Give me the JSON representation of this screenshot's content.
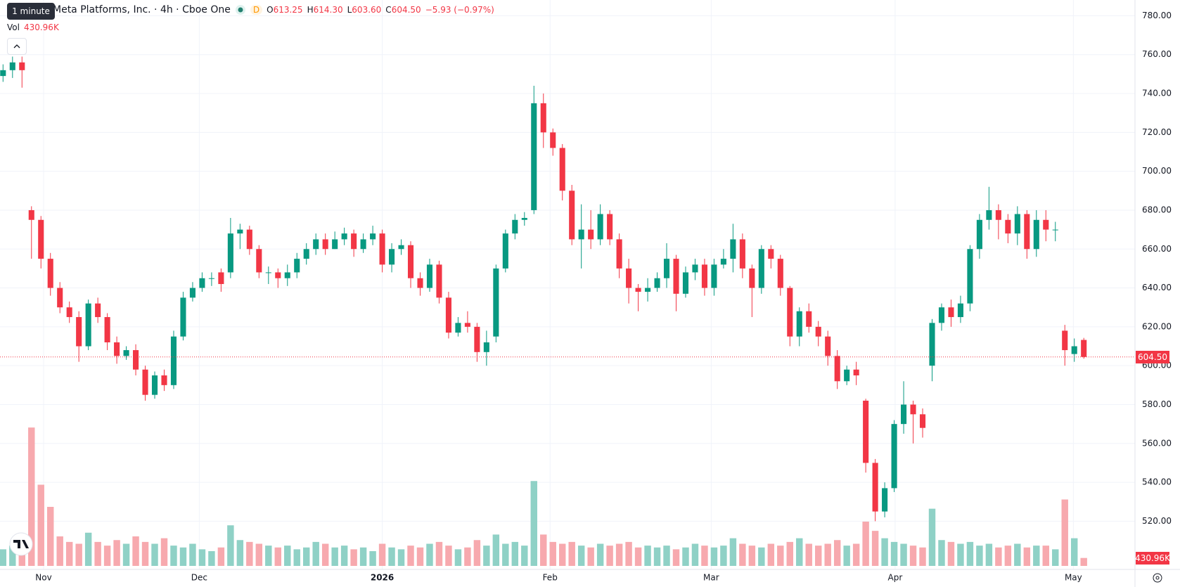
{
  "chart_data": {
    "type": "candlestick",
    "title": "Meta Platforms, Inc. · 4h · Cboe One",
    "tooltip": "1 minute",
    "interval_badge": "D",
    "ohlc_keys": [
      "O",
      "H",
      "L",
      "C"
    ],
    "ohlc_labels": [
      "613.25",
      "614.30",
      "603.60",
      "604.50"
    ],
    "change_label": "−5.93 (−0.97%)",
    "volume_title": "Vol",
    "volume_label": "430.96K",
    "up_color": "#089981",
    "down_color": "#f23645",
    "volume_up_color": "#8fd1c6",
    "volume_down_color": "#f7a9ae",
    "grid": true,
    "xlim": [
      -0.32,
      119.4
    ],
    "xticks": [
      {
        "value": 4.28,
        "label": "Nov"
      },
      {
        "value": 20.7,
        "label": "Dec"
      },
      {
        "value": 40,
        "label": "2026"
      },
      {
        "value": 57.7,
        "label": "Feb"
      },
      {
        "value": 74.7,
        "label": "Mar"
      },
      {
        "value": 94.1,
        "label": "Apr"
      },
      {
        "value": 112.9,
        "label": "May"
      }
    ],
    "ylim": [
      495.2,
      788.1
    ],
    "yticks": [
      {
        "value": 520,
        "label": "520.00"
      },
      {
        "value": 540,
        "label": "540.00"
      },
      {
        "value": 560,
        "label": "560.00"
      },
      {
        "value": 580,
        "label": "580.00"
      },
      {
        "value": 600,
        "label": "600.00"
      },
      {
        "value": 620,
        "label": "620.00"
      },
      {
        "value": 640,
        "label": "640.00"
      },
      {
        "value": 660,
        "label": "660.00"
      },
      {
        "value": 680,
        "label": "680.00"
      },
      {
        "value": 700,
        "label": "700.00"
      },
      {
        "value": 720,
        "label": "720.00"
      },
      {
        "value": 740,
        "label": "740.00"
      },
      {
        "value": 760,
        "label": "760.00"
      },
      {
        "value": 780,
        "label": "780.00"
      }
    ],
    "volume_lim": [
      0,
      8000000
    ],
    "open": [
      749,
      752,
      756,
      680,
      675,
      655,
      640,
      630,
      625,
      610,
      632,
      625,
      612,
      605,
      608,
      598,
      585,
      595,
      590,
      615,
      635,
      640,
      645,
      648,
      648,
      668,
      670,
      660,
      648,
      648,
      645,
      648,
      655,
      660,
      665,
      660,
      665,
      668,
      660,
      665,
      668,
      652,
      660,
      662,
      645,
      640,
      652,
      635,
      617,
      622,
      620,
      607,
      615,
      650,
      668,
      675,
      680,
      735,
      720,
      712,
      690,
      665,
      670,
      665,
      678,
      665,
      650,
      640,
      638,
      640,
      645,
      655,
      637,
      648,
      652,
      640,
      652,
      655,
      665,
      650,
      640,
      660,
      655,
      640,
      615,
      628,
      620,
      615,
      605,
      592,
      598,
      582,
      550,
      525,
      537,
      570,
      580,
      575,
      600,
      622,
      630,
      625,
      632,
      660,
      675,
      680,
      675,
      668,
      678,
      660,
      675,
      670,
      618,
      606,
      613.25
    ],
    "high": [
      755,
      759,
      759,
      682,
      677,
      658,
      643,
      633,
      628,
      634,
      635,
      627,
      615,
      610,
      611,
      600,
      597,
      598,
      618,
      638,
      643,
      648,
      648,
      650,
      676,
      673,
      672,
      662,
      651,
      650,
      652,
      658,
      663,
      668,
      668,
      669,
      671,
      670,
      668,
      672,
      670,
      663,
      665,
      664,
      648,
      655,
      654,
      638,
      625,
      628,
      622,
      618,
      652,
      670,
      678,
      679,
      744,
      740,
      722,
      714,
      693,
      683,
      680,
      683,
      680,
      668,
      655,
      642,
      645,
      648,
      663,
      657,
      651,
      655,
      655,
      655,
      660,
      673,
      668,
      652,
      662,
      662,
      657,
      641,
      630,
      632,
      623,
      618,
      608,
      600,
      602,
      583,
      552,
      540,
      572,
      592,
      582,
      578,
      624,
      632,
      634,
      636,
      662,
      678,
      692,
      683,
      678,
      682,
      680,
      680,
      680,
      674,
      621,
      614,
      614.3
    ],
    "low": [
      746,
      748,
      743,
      655,
      650,
      636,
      627,
      622,
      602,
      608,
      622,
      608,
      601,
      603,
      595,
      582,
      583,
      587,
      588,
      613,
      633,
      638,
      641,
      638,
      645,
      660,
      657,
      645,
      642,
      640,
      641,
      645,
      652,
      657,
      657,
      660,
      662,
      656,
      658,
      662,
      648,
      648,
      657,
      640,
      636,
      638,
      632,
      614,
      615,
      617,
      602,
      600,
      612,
      648,
      665,
      672,
      678,
      712,
      708,
      685,
      662,
      650,
      660,
      662,
      662,
      645,
      632,
      628,
      633,
      638,
      640,
      628,
      635,
      644,
      636,
      636,
      650,
      648,
      645,
      625,
      637,
      650,
      636,
      610,
      610,
      617,
      610,
      600,
      588,
      590,
      590,
      545,
      520,
      522,
      535,
      565,
      560,
      563,
      592,
      618,
      620,
      622,
      628,
      655,
      670,
      665,
      663,
      662,
      655,
      656,
      664,
      664,
      600,
      602,
      603.6
    ],
    "close": [
      752,
      756,
      752,
      675,
      655,
      640,
      630,
      625,
      610,
      632,
      625,
      612,
      605,
      608,
      598,
      585,
      595,
      590,
      615,
      635,
      640,
      645,
      645,
      642,
      668,
      670,
      660,
      648,
      648,
      645,
      648,
      655,
      660,
      665,
      660,
      665,
      668,
      660,
      665,
      668,
      652,
      660,
      662,
      645,
      640,
      652,
      635,
      617,
      622,
      620,
      607,
      612,
      650,
      668,
      675,
      676,
      735,
      720,
      712,
      690,
      665,
      670,
      665,
      678,
      665,
      650,
      640,
      638,
      640,
      645,
      655,
      637,
      648,
      652,
      640,
      652,
      655,
      665,
      650,
      640,
      660,
      655,
      640,
      615,
      628,
      620,
      615,
      605,
      592,
      598,
      595,
      550,
      525,
      537,
      570,
      580,
      575,
      568,
      622,
      630,
      625,
      632,
      660,
      675,
      680,
      675,
      668,
      678,
      660,
      675,
      670,
      670,
      608,
      610,
      604.5
    ],
    "volume": [
      900000,
      1100000,
      800000,
      7500000,
      4400000,
      3200000,
      1600000,
      1300000,
      1200000,
      1800000,
      1300000,
      1100000,
      1400000,
      1200000,
      1600000,
      1300000,
      1200000,
      1500000,
      1100000,
      1000000,
      1200000,
      900000,
      800000,
      1000000,
      2200000,
      1400000,
      1300000,
      1200000,
      1100000,
      1000000,
      1100000,
      900000,
      1000000,
      1300000,
      1200000,
      1000000,
      1100000,
      900000,
      1000000,
      800000,
      1200000,
      1000000,
      900000,
      1100000,
      1000000,
      1200000,
      1300000,
      1100000,
      900000,
      1000000,
      1400000,
      1100000,
      1700000,
      1200000,
      1300000,
      1100000,
      4600000,
      1700000,
      1300000,
      1200000,
      1300000,
      1100000,
      1000000,
      1200000,
      1100000,
      1200000,
      1300000,
      1000000,
      1100000,
      1000000,
      1100000,
      900000,
      1000000,
      1200000,
      1100000,
      1000000,
      1100000,
      1500000,
      1200000,
      1100000,
      1000000,
      1200000,
      1100000,
      1300000,
      1500000,
      1200000,
      1100000,
      1200000,
      1400000,
      1100000,
      1200000,
      2400000,
      1900000,
      1500000,
      1300000,
      1200000,
      1100000,
      1000000,
      3100000,
      1400000,
      1300000,
      1200000,
      1300000,
      1100000,
      1200000,
      1000000,
      1100000,
      1200000,
      1000000,
      1100000,
      1100000,
      900000,
      3600000,
      1500000,
      430960
    ]
  }
}
